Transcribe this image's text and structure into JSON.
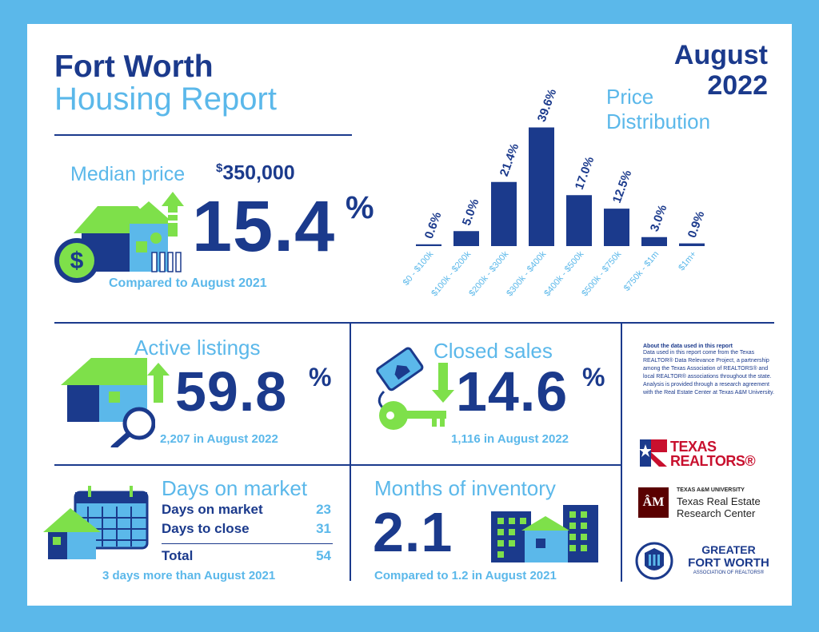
{
  "header": {
    "title_line1": "Fort Worth",
    "title_line2": "Housing Report",
    "month_line1": "August",
    "month_line2": "2022"
  },
  "colors": {
    "navy": "#1b3a8c",
    "light_blue": "#5bb8ea",
    "green": "#7ee04a"
  },
  "price_distribution": {
    "label_line1": "Price",
    "label_line2": "Distribution"
  },
  "chart_data": {
    "type": "bar",
    "categories": [
      "$0 - $100k",
      "$100k - $200k",
      "$200k - $300k",
      "$300k - $400k",
      "$400k - $500k",
      "$500k - $750k",
      "$750k - $1m",
      "$1m+"
    ],
    "values": [
      0.6,
      5.0,
      21.4,
      39.6,
      17.0,
      12.5,
      3.0,
      0.9
    ],
    "value_labels": [
      "0.6%",
      "5.0%",
      "21.4%",
      "39.6%",
      "17.0%",
      "12.5%",
      "3.0%",
      "0.9%"
    ],
    "ylim": [
      0,
      40
    ]
  },
  "median": {
    "label": "Median price",
    "currency": "$",
    "value": "350,000",
    "change": "15.4",
    "pct_sign": "%",
    "direction": "up",
    "compare": "Compared to August 2021"
  },
  "active_listings": {
    "title": "Active listings",
    "change": "59.8",
    "pct_sign": "%",
    "direction": "up",
    "detail": "2,207 in August 2022"
  },
  "closed_sales": {
    "title": "Closed sales",
    "change": "14.6",
    "pct_sign": "%",
    "direction": "down",
    "detail": "1,116 in August 2022"
  },
  "days_on_market": {
    "title": "Days on market",
    "rows": [
      {
        "label": "Days on market",
        "value": "23"
      },
      {
        "label": "Days to close",
        "value": "31"
      }
    ],
    "total_label": "Total",
    "total_value": "54",
    "compare": "3 days more than August 2021"
  },
  "inventory": {
    "title": "Months of inventory",
    "value": "2.1",
    "compare": "Compared to 1.2 in August 2021"
  },
  "about": {
    "heading": "About the data used in this report",
    "text": "Data used in this report come from the Texas REALTOR® Data Relevance Project, a partnership among the Texas Association of REALTORS® and local REALTOR® associations throughout the state. Analysis is provided through a research agreement with the Real Estate Center at Texas A&M University."
  },
  "logos": {
    "texas_realtors_line1": "TEXAS",
    "texas_realtors_line2": "REALTORS®",
    "tamu_small": "TEXAS A&M UNIVERSITY",
    "tamu_line1": "Texas Real Estate",
    "tamu_line2": "Research Center",
    "tamu_mark": "ÂM",
    "gfw_line1": "GREATER",
    "gfw_line2": "FORT WORTH",
    "gfw_line3": "ASSOCIATION OF REALTORS®"
  },
  "icons": [
    "house-dollar-icon",
    "arrow-up-icon",
    "house-search-icon",
    "key-tag-icon",
    "arrow-down-icon",
    "calendar-house-icon",
    "buildings-icon"
  ]
}
